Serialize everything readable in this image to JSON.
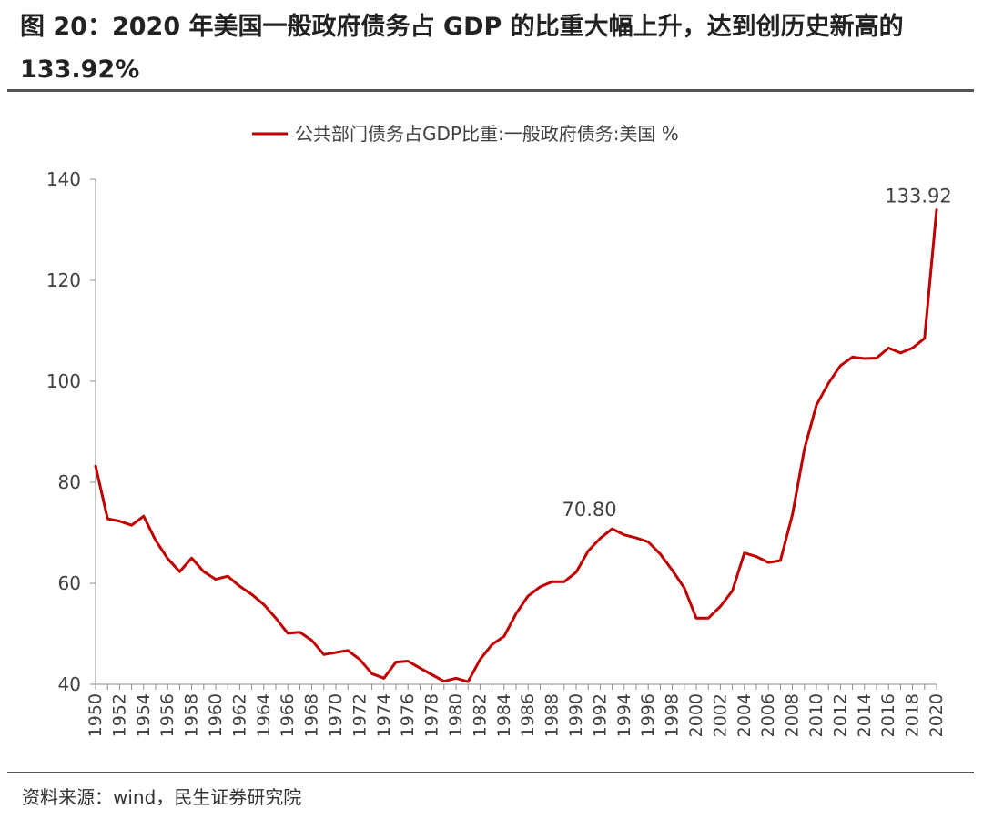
{
  "header": {
    "title": "图 20：2020 年美国一般政府债务占 GDP 的比重大幅上升，达到创历史新高的 133.92%"
  },
  "footer": {
    "source": "资料来源：wind，民生证券研究院"
  },
  "colors": {
    "series": "#c00000",
    "axis": "#8c8c8c",
    "text": "#404040"
  },
  "chart_data": {
    "type": "line",
    "legend_position": "top-center",
    "grid": false,
    "ylim": [
      40,
      140
    ],
    "yticks": [
      40,
      60,
      80,
      100,
      120,
      140
    ],
    "xticks": [
      1950,
      1952,
      1954,
      1956,
      1958,
      1960,
      1962,
      1964,
      1966,
      1968,
      1970,
      1972,
      1974,
      1976,
      1978,
      1980,
      1982,
      1984,
      1986,
      1988,
      1990,
      1992,
      1994,
      1996,
      1998,
      2000,
      2002,
      2004,
      2006,
      2008,
      2010,
      2012,
      2014,
      2016,
      2018,
      2020
    ],
    "xticks_labels": [
      "1950",
      "1952",
      "1954",
      "1956",
      "1958",
      "1960",
      "1962",
      "1964",
      "1966",
      "1968",
      "1970",
      "1972",
      "1974",
      "1976",
      "1978",
      "1980",
      "1982",
      "1984",
      "1986",
      "1988",
      "1990",
      "1992",
      "1994",
      "1996",
      "1998",
      "2000",
      "2002",
      "2004",
      "2006",
      "2008",
      "2010",
      "2012",
      "2014",
      "2016",
      "2018",
      "2020"
    ],
    "yticks_labels": [
      "40",
      "60",
      "80",
      "100",
      "120",
      "140"
    ],
    "series": [
      {
        "name": "公共部门债务占GDP比重:一般政府债务:美国 %",
        "x": [
          1950,
          1951,
          1952,
          1953,
          1954,
          1955,
          1956,
          1957,
          1958,
          1959,
          1960,
          1961,
          1962,
          1963,
          1964,
          1965,
          1966,
          1967,
          1968,
          1969,
          1970,
          1971,
          1972,
          1973,
          1974,
          1975,
          1976,
          1977,
          1978,
          1979,
          1980,
          1981,
          1982,
          1983,
          1984,
          1985,
          1986,
          1987,
          1988,
          1989,
          1990,
          1991,
          1992,
          1993,
          1994,
          1995,
          1996,
          1997,
          1998,
          1999,
          2000,
          2001,
          2002,
          2003,
          2004,
          2005,
          2006,
          2007,
          2008,
          2009,
          2010,
          2011,
          2012,
          2013,
          2014,
          2015,
          2016,
          2017,
          2018,
          2019,
          2020
        ],
        "values": [
          83.2,
          72.8,
          72.3,
          71.5,
          73.3,
          68.5,
          64.9,
          62.3,
          65.0,
          62.3,
          60.8,
          61.4,
          59.4,
          57.8,
          55.8,
          53.1,
          50.1,
          50.3,
          48.7,
          45.9,
          46.3,
          46.7,
          44.9,
          42.1,
          41.2,
          44.4,
          44.6,
          43.2,
          41.9,
          40.6,
          41.2,
          40.5,
          44.9,
          47.9,
          49.5,
          54.0,
          57.5,
          59.3,
          60.3,
          60.3,
          62.2,
          66.4,
          68.9,
          70.8,
          69.6,
          69.0,
          68.2,
          65.8,
          62.6,
          59.1,
          53.1,
          53.1,
          55.4,
          58.5,
          66.0,
          65.3,
          64.1,
          64.5,
          73.6,
          86.6,
          95.3,
          99.6,
          103.1,
          104.8,
          104.5,
          104.6,
          106.6,
          105.6,
          106.6,
          108.5,
          133.92
        ]
      }
    ],
    "annotations": [
      {
        "x": 1993,
        "y": 70.8,
        "text": "70.80"
      },
      {
        "x": 2020,
        "y": 133.92,
        "text": "133.92"
      }
    ]
  }
}
